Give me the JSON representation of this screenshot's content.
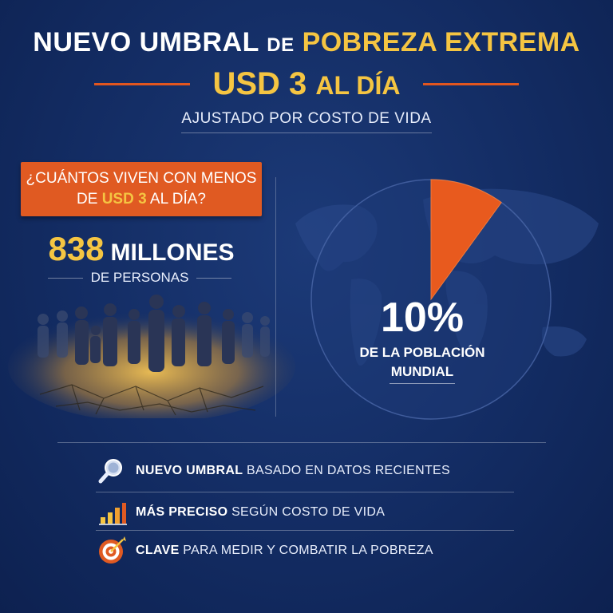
{
  "header": {
    "title_part1": "NUEVO UMBRAL",
    "title_part2": "DE",
    "title_part3": "POBREZA EXTREMA",
    "amount": "USD 3",
    "amount_suffix": "AL DÍA",
    "subtitle": "AJUSTADO POR COSTO DE VIDA"
  },
  "left": {
    "question_line1": "¿CUÁNTOS VIVEN CON MENOS",
    "question_line2_pre": "DE",
    "question_line2_highlight": "USD 3",
    "question_line2_post": "AL DÍA?",
    "count_number": "838",
    "count_unit": "MILLONES",
    "count_label": "DE PERSONAS"
  },
  "right": {
    "percent": "10%",
    "pop_line1": "DE LA POBLACIÓN",
    "pop_line2": "MUNDIAL",
    "pie_fraction": 0.1
  },
  "features": [
    {
      "icon": "magnifier-icon",
      "bold": "NUEVO UMBRAL",
      "rest": "BASADO EN DATOS RECIENTES"
    },
    {
      "icon": "bar-chart-icon",
      "bold": "MÁS PRECISO",
      "rest": "SEGÚN COSTO DE VIDA"
    },
    {
      "icon": "target-icon",
      "bold": "CLAVE",
      "rest": "PARA MEDIR Y COMBATIR LA POBREZA"
    }
  ],
  "colors": {
    "accent_yellow": "#f5c542",
    "accent_orange": "#e05a22",
    "background": "#132c63"
  }
}
